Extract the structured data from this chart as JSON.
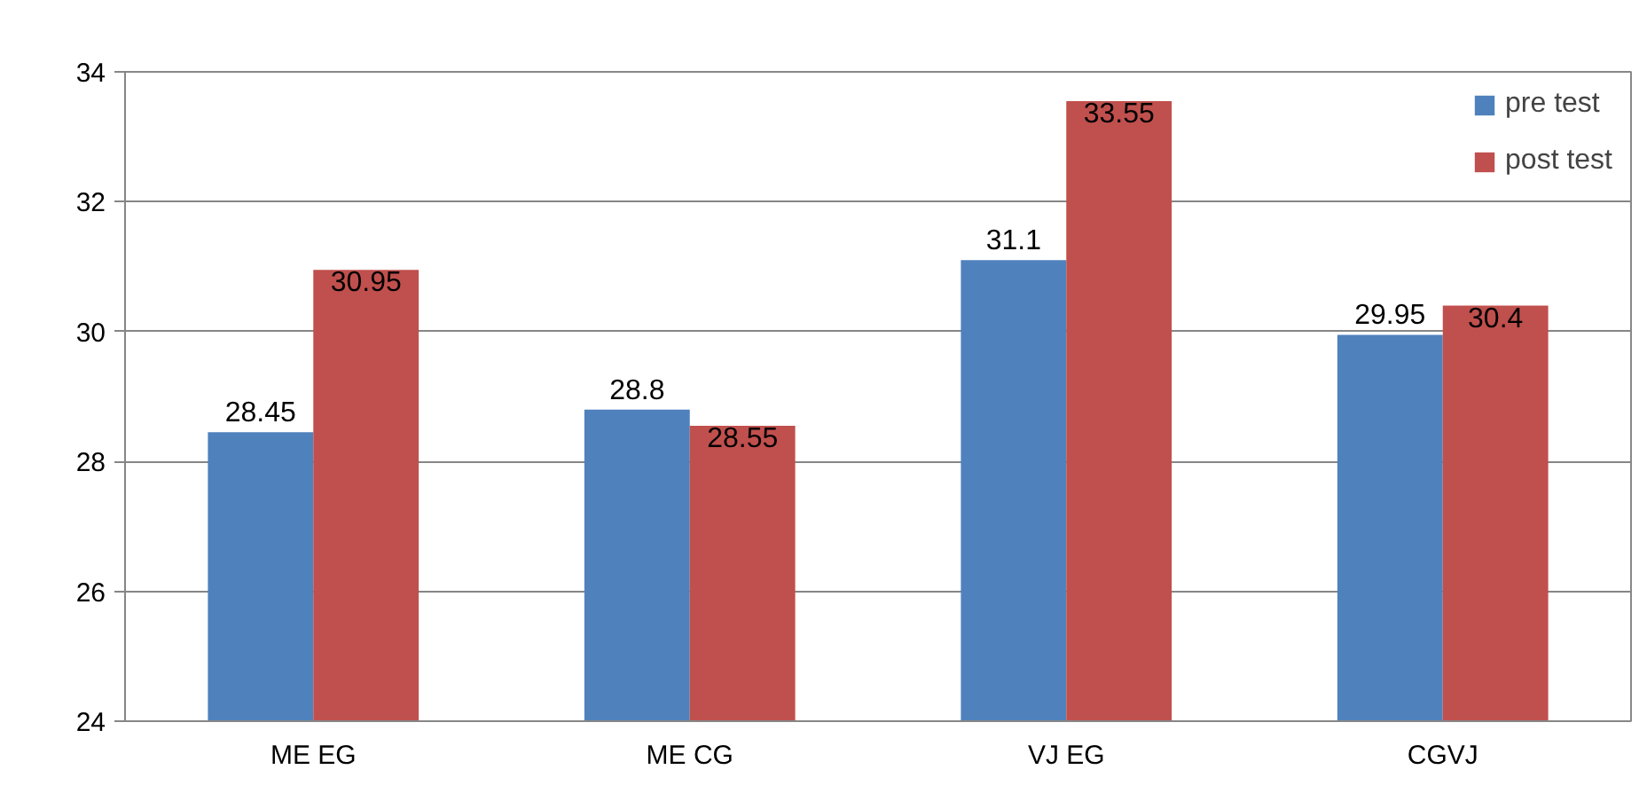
{
  "chart_data": {
    "type": "bar",
    "categories": [
      "ME EG",
      "ME CG",
      "VJ EG",
      "CGVJ"
    ],
    "series": [
      {
        "name": "pre test",
        "color": "#4f81bd",
        "values": [
          28.45,
          28.8,
          31.1,
          29.95
        ]
      },
      {
        "name": "post test",
        "color": "#c0504d",
        "values": [
          30.95,
          28.55,
          33.55,
          30.4
        ]
      }
    ],
    "ylim": [
      24,
      34
    ],
    "yticks": [
      24,
      26,
      28,
      30,
      32,
      34
    ],
    "grid": "y",
    "legend": "top right",
    "data_labels": true
  }
}
